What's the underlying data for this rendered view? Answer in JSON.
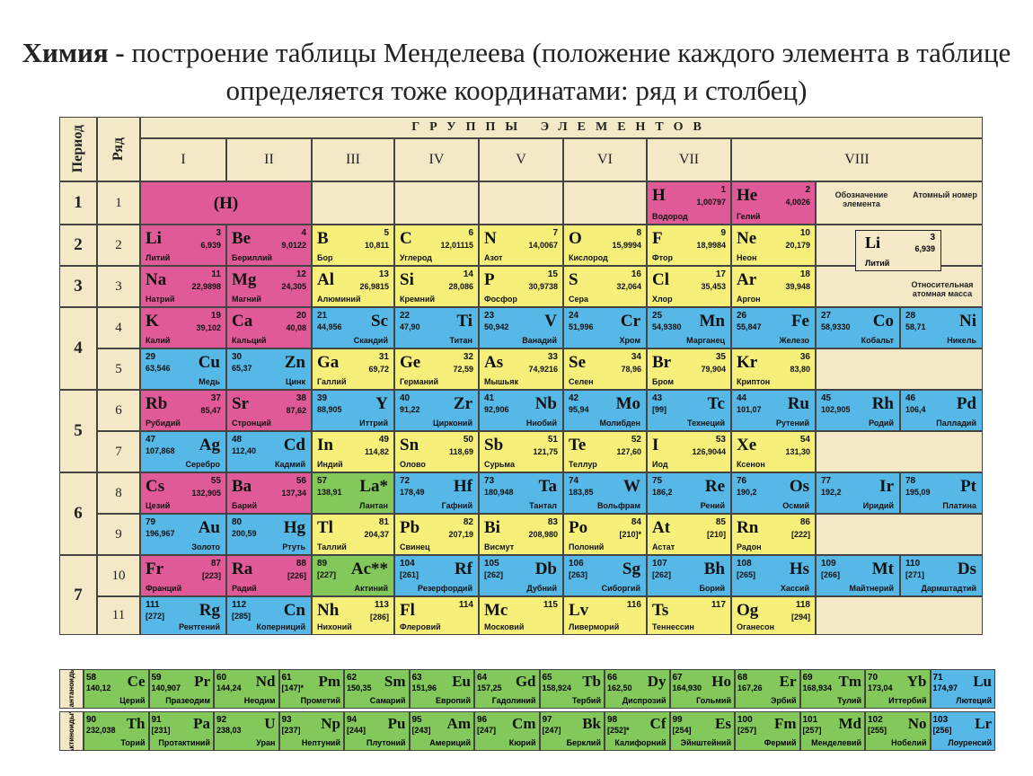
{
  "title": {
    "bold": "Химия -",
    "rest": " построение таблицы Менделеева (положение каждого элемента в таблице определяется тоже координатами: ряд и столбец)"
  },
  "headers": {
    "period": "Период",
    "row": "Ряд",
    "groups_title": "ГРУППЫ ЭЛЕМЕНТОВ",
    "groups": [
      "I",
      "II",
      "III",
      "IV",
      "V",
      "VI",
      "VII",
      "VIII"
    ]
  },
  "periods": [
    "1",
    "2",
    "3",
    "4",
    "5",
    "6",
    "7"
  ],
  "rows": [
    "1",
    "2",
    "3",
    "4",
    "5",
    "6",
    "7",
    "8",
    "9",
    "10",
    "11"
  ],
  "legend": {
    "symbol_label": "Обозначение элемента",
    "number_label": "Атомный номер",
    "mass_label": "Относительная атомная масса",
    "symbol": "Li",
    "number": "3",
    "mass": "6,939",
    "name": "Литий"
  },
  "elements": [
    {
      "r": 0,
      "c": 0,
      "sym": "(H)",
      "num": "",
      "mass": "",
      "name": "",
      "color": "pink",
      "style": "center"
    },
    {
      "r": 0,
      "c": 6,
      "sym": "H",
      "num": "1",
      "mass": "1,00797",
      "name": "Водород",
      "color": "pink",
      "style": "left"
    },
    {
      "r": 0,
      "c": 7,
      "sym": "He",
      "num": "2",
      "mass": "4,0026",
      "name": "Гелий",
      "color": "pink",
      "style": "left"
    },
    {
      "r": 1,
      "c": 0,
      "sym": "Li",
      "num": "3",
      "mass": "6,939",
      "name": "Литий",
      "color": "pink",
      "style": "left"
    },
    {
      "r": 1,
      "c": 1,
      "sym": "Be",
      "num": "4",
      "mass": "9,0122",
      "name": "Бериллий",
      "color": "pink",
      "style": "left"
    },
    {
      "r": 1,
      "c": 2,
      "sym": "B",
      "num": "5",
      "mass": "10,811",
      "name": "Бор",
      "color": "yellow",
      "style": "left"
    },
    {
      "r": 1,
      "c": 3,
      "sym": "C",
      "num": "6",
      "mass": "12,01115",
      "name": "Углерод",
      "color": "yellow",
      "style": "left"
    },
    {
      "r": 1,
      "c": 4,
      "sym": "N",
      "num": "7",
      "mass": "14,0067",
      "name": "Азот",
      "color": "yellow",
      "style": "left"
    },
    {
      "r": 1,
      "c": 5,
      "sym": "O",
      "num": "8",
      "mass": "15,9994",
      "name": "Кислород",
      "color": "yellow",
      "style": "left"
    },
    {
      "r": 1,
      "c": 6,
      "sym": "F",
      "num": "9",
      "mass": "18,9984",
      "name": "Фтор",
      "color": "yellow",
      "style": "left"
    },
    {
      "r": 1,
      "c": 7,
      "sym": "Ne",
      "num": "10",
      "mass": "20,179",
      "name": "Неон",
      "color": "yellow",
      "style": "left"
    },
    {
      "r": 2,
      "c": 0,
      "sym": "Na",
      "num": "11",
      "mass": "22,9898",
      "name": "Натрий",
      "color": "pink",
      "style": "left"
    },
    {
      "r": 2,
      "c": 1,
      "sym": "Mg",
      "num": "12",
      "mass": "24,305",
      "name": "Магний",
      "color": "pink",
      "style": "left"
    },
    {
      "r": 2,
      "c": 2,
      "sym": "Al",
      "num": "13",
      "mass": "26,9815",
      "name": "Алюминий",
      "color": "yellow",
      "style": "left"
    },
    {
      "r": 2,
      "c": 3,
      "sym": "Si",
      "num": "14",
      "mass": "28,086",
      "name": "Кремний",
      "color": "yellow",
      "style": "left"
    },
    {
      "r": 2,
      "c": 4,
      "sym": "P",
      "num": "15",
      "mass": "30,9738",
      "name": "Фосфор",
      "color": "yellow",
      "style": "left"
    },
    {
      "r": 2,
      "c": 5,
      "sym": "S",
      "num": "16",
      "mass": "32,064",
      "name": "Сера",
      "color": "yellow",
      "style": "left"
    },
    {
      "r": 2,
      "c": 6,
      "sym": "Cl",
      "num": "17",
      "mass": "35,453",
      "name": "Хлор",
      "color": "yellow",
      "style": "left"
    },
    {
      "r": 2,
      "c": 7,
      "sym": "Ar",
      "num": "18",
      "mass": "39,948",
      "name": "Аргон",
      "color": "yellow",
      "style": "left"
    },
    {
      "r": 3,
      "c": 0,
      "sym": "K",
      "num": "19",
      "mass": "39,102",
      "name": "Калий",
      "color": "pink",
      "style": "left"
    },
    {
      "r": 3,
      "c": 1,
      "sym": "Ca",
      "num": "20",
      "mass": "40,08",
      "name": "Кальций",
      "color": "pink",
      "style": "left"
    },
    {
      "r": 3,
      "c": 2,
      "sym": "Sc",
      "num": "21",
      "mass": "44,956",
      "name": "Скандий",
      "color": "blue",
      "style": "right"
    },
    {
      "r": 3,
      "c": 3,
      "sym": "Ti",
      "num": "22",
      "mass": "47,90",
      "name": "Титан",
      "color": "blue",
      "style": "right"
    },
    {
      "r": 3,
      "c": 4,
      "sym": "V",
      "num": "23",
      "mass": "50,942",
      "name": "Ванадий",
      "color": "blue",
      "style": "right"
    },
    {
      "r": 3,
      "c": 5,
      "sym": "Cr",
      "num": "24",
      "mass": "51,996",
      "name": "Хром",
      "color": "blue",
      "style": "right"
    },
    {
      "r": 3,
      "c": 6,
      "sym": "Mn",
      "num": "25",
      "mass": "54,9380",
      "name": "Марганец",
      "color": "blue",
      "style": "right"
    },
    {
      "r": 3,
      "c": 7,
      "sym": "Fe",
      "num": "26",
      "mass": "55,847",
      "name": "Железо",
      "color": "blue",
      "style": "right"
    },
    {
      "r": 3,
      "c": 8,
      "sym": "Co",
      "num": "27",
      "mass": "58,9330",
      "name": "Кобальт",
      "color": "blue",
      "style": "right"
    },
    {
      "r": 3,
      "c": 9,
      "sym": "Ni",
      "num": "28",
      "mass": "58,71",
      "name": "Никель",
      "color": "blue",
      "style": "right"
    },
    {
      "r": 4,
      "c": 0,
      "sym": "Cu",
      "num": "29",
      "mass": "63,546",
      "name": "Медь",
      "color": "blue",
      "style": "right"
    },
    {
      "r": 4,
      "c": 1,
      "sym": "Zn",
      "num": "30",
      "mass": "65,37",
      "name": "Цинк",
      "color": "blue",
      "style": "right"
    },
    {
      "r": 4,
      "c": 2,
      "sym": "Ga",
      "num": "31",
      "mass": "69,72",
      "name": "Галлий",
      "color": "yellow",
      "style": "left"
    },
    {
      "r": 4,
      "c": 3,
      "sym": "Ge",
      "num": "32",
      "mass": "72,59",
      "name": "Германий",
      "color": "yellow",
      "style": "left"
    },
    {
      "r": 4,
      "c": 4,
      "sym": "As",
      "num": "33",
      "mass": "74,9216",
      "name": "Мышьяк",
      "color": "yellow",
      "style": "left"
    },
    {
      "r": 4,
      "c": 5,
      "sym": "Se",
      "num": "34",
      "mass": "78,96",
      "name": "Селен",
      "color": "yellow",
      "style": "left"
    },
    {
      "r": 4,
      "c": 6,
      "sym": "Br",
      "num": "35",
      "mass": "79,904",
      "name": "Бром",
      "color": "yellow",
      "style": "left"
    },
    {
      "r": 4,
      "c": 7,
      "sym": "Kr",
      "num": "36",
      "mass": "83,80",
      "name": "Криптон",
      "color": "yellow",
      "style": "left"
    },
    {
      "r": 5,
      "c": 0,
      "sym": "Rb",
      "num": "37",
      "mass": "85,47",
      "name": "Рубидий",
      "color": "pink",
      "style": "left"
    },
    {
      "r": 5,
      "c": 1,
      "sym": "Sr",
      "num": "38",
      "mass": "87,62",
      "name": "Стронций",
      "color": "pink",
      "style": "left"
    },
    {
      "r": 5,
      "c": 2,
      "sym": "Y",
      "num": "39",
      "mass": "88,905",
      "name": "Иттрий",
      "color": "blue",
      "style": "right"
    },
    {
      "r": 5,
      "c": 3,
      "sym": "Zr",
      "num": "40",
      "mass": "91,22",
      "name": "Цирконий",
      "color": "blue",
      "style": "right"
    },
    {
      "r": 5,
      "c": 4,
      "sym": "Nb",
      "num": "41",
      "mass": "92,906",
      "name": "Ниобий",
      "color": "blue",
      "style": "right"
    },
    {
      "r": 5,
      "c": 5,
      "sym": "Mo",
      "num": "42",
      "mass": "95,94",
      "name": "Молибден",
      "color": "blue",
      "style": "right"
    },
    {
      "r": 5,
      "c": 6,
      "sym": "Tc",
      "num": "43",
      "mass": "[99]",
      "name": "Технеций",
      "color": "blue",
      "style": "right"
    },
    {
      "r": 5,
      "c": 7,
      "sym": "Ru",
      "num": "44",
      "mass": "101,07",
      "name": "Рутений",
      "color": "blue",
      "style": "right"
    },
    {
      "r": 5,
      "c": 8,
      "sym": "Rh",
      "num": "45",
      "mass": "102,905",
      "name": "Родий",
      "color": "blue",
      "style": "right"
    },
    {
      "r": 5,
      "c": 9,
      "sym": "Pd",
      "num": "46",
      "mass": "106,4",
      "name": "Палладий",
      "color": "blue",
      "style": "right"
    },
    {
      "r": 6,
      "c": 0,
      "sym": "Ag",
      "num": "47",
      "mass": "107,868",
      "name": "Серебро",
      "color": "blue",
      "style": "right"
    },
    {
      "r": 6,
      "c": 1,
      "sym": "Cd",
      "num": "48",
      "mass": "112,40",
      "name": "Кадмий",
      "color": "blue",
      "style": "right"
    },
    {
      "r": 6,
      "c": 2,
      "sym": "In",
      "num": "49",
      "mass": "114,82",
      "name": "Индий",
      "color": "yellow",
      "style": "left"
    },
    {
      "r": 6,
      "c": 3,
      "sym": "Sn",
      "num": "50",
      "mass": "118,69",
      "name": "Олово",
      "color": "yellow",
      "style": "left"
    },
    {
      "r": 6,
      "c": 4,
      "sym": "Sb",
      "num": "51",
      "mass": "121,75",
      "name": "Сурьма",
      "color": "yellow",
      "style": "left"
    },
    {
      "r": 6,
      "c": 5,
      "sym": "Te",
      "num": "52",
      "mass": "127,60",
      "name": "Теллур",
      "color": "yellow",
      "style": "left"
    },
    {
      "r": 6,
      "c": 6,
      "sym": "I",
      "num": "53",
      "mass": "126,9044",
      "name": "Иод",
      "color": "yellow",
      "style": "left"
    },
    {
      "r": 6,
      "c": 7,
      "sym": "Xe",
      "num": "54",
      "mass": "131,30",
      "name": "Ксенон",
      "color": "yellow",
      "style": "left"
    },
    {
      "r": 7,
      "c": 0,
      "sym": "Cs",
      "num": "55",
      "mass": "132,905",
      "name": "Цезий",
      "color": "pink",
      "style": "left"
    },
    {
      "r": 7,
      "c": 1,
      "sym": "Ba",
      "num": "56",
      "mass": "137,34",
      "name": "Барий",
      "color": "pink",
      "style": "left"
    },
    {
      "r": 7,
      "c": 2,
      "sym": "La*",
      "num": "57",
      "mass": "138,91",
      "name": "Лантан",
      "color": "green",
      "style": "right"
    },
    {
      "r": 7,
      "c": 3,
      "sym": "Hf",
      "num": "72",
      "mass": "178,49",
      "name": "Гафний",
      "color": "blue",
      "style": "right"
    },
    {
      "r": 7,
      "c": 4,
      "sym": "Ta",
      "num": "73",
      "mass": "180,948",
      "name": "Тантал",
      "color": "blue",
      "style": "right"
    },
    {
      "r": 7,
      "c": 5,
      "sym": "W",
      "num": "74",
      "mass": "183,85",
      "name": "Вольфрам",
      "color": "blue",
      "style": "right"
    },
    {
      "r": 7,
      "c": 6,
      "sym": "Re",
      "num": "75",
      "mass": "186,2",
      "name": "Рений",
      "color": "blue",
      "style": "right"
    },
    {
      "r": 7,
      "c": 7,
      "sym": "Os",
      "num": "76",
      "mass": "190,2",
      "name": "Осмий",
      "color": "blue",
      "style": "right"
    },
    {
      "r": 7,
      "c": 8,
      "sym": "Ir",
      "num": "77",
      "mass": "192,2",
      "name": "Иридий",
      "color": "blue",
      "style": "right"
    },
    {
      "r": 7,
      "c": 9,
      "sym": "Pt",
      "num": "78",
      "mass": "195,09",
      "name": "Платина",
      "color": "blue",
      "style": "right"
    },
    {
      "r": 8,
      "c": 0,
      "sym": "Au",
      "num": "79",
      "mass": "196,967",
      "name": "Золото",
      "color": "blue",
      "style": "right"
    },
    {
      "r": 8,
      "c": 1,
      "sym": "Hg",
      "num": "80",
      "mass": "200,59",
      "name": "Ртуть",
      "color": "blue",
      "style": "right"
    },
    {
      "r": 8,
      "c": 2,
      "sym": "Tl",
      "num": "81",
      "mass": "204,37",
      "name": "Таллий",
      "color": "yellow",
      "style": "left"
    },
    {
      "r": 8,
      "c": 3,
      "sym": "Pb",
      "num": "82",
      "mass": "207,19",
      "name": "Свинец",
      "color": "yellow",
      "style": "left"
    },
    {
      "r": 8,
      "c": 4,
      "sym": "Bi",
      "num": "83",
      "mass": "208,980",
      "name": "Висмут",
      "color": "yellow",
      "style": "left"
    },
    {
      "r": 8,
      "c": 5,
      "sym": "Po",
      "num": "84",
      "mass": "[210]*",
      "name": "Полоний",
      "color": "yellow",
      "style": "left"
    },
    {
      "r": 8,
      "c": 6,
      "sym": "At",
      "num": "85",
      "mass": "[210]",
      "name": "Астат",
      "color": "yellow",
      "style": "left"
    },
    {
      "r": 8,
      "c": 7,
      "sym": "Rn",
      "num": "86",
      "mass": "[222]",
      "name": "Радон",
      "color": "yellow",
      "style": "left"
    },
    {
      "r": 9,
      "c": 0,
      "sym": "Fr",
      "num": "87",
      "mass": "[223]",
      "name": "Франций",
      "color": "pink",
      "style": "left"
    },
    {
      "r": 9,
      "c": 1,
      "sym": "Ra",
      "num": "88",
      "mass": "[226]",
      "name": "Радий",
      "color": "pink",
      "style": "left"
    },
    {
      "r": 9,
      "c": 2,
      "sym": "Ac**",
      "num": "89",
      "mass": "[227]",
      "name": "Актиний",
      "color": "green",
      "style": "right"
    },
    {
      "r": 9,
      "c": 3,
      "sym": "Rf",
      "num": "104",
      "mass": "[261]",
      "name": "Резерфордий",
      "color": "blue",
      "style": "right"
    },
    {
      "r": 9,
      "c": 4,
      "sym": "Db",
      "num": "105",
      "mass": "[262]",
      "name": "Дубний",
      "color": "blue",
      "style": "right"
    },
    {
      "r": 9,
      "c": 5,
      "sym": "Sg",
      "num": "106",
      "mass": "[263]",
      "name": "Сиборгий",
      "color": "blue",
      "style": "right"
    },
    {
      "r": 9,
      "c": 6,
      "sym": "Bh",
      "num": "107",
      "mass": "[262]",
      "name": "Борий",
      "color": "blue",
      "style": "right"
    },
    {
      "r": 9,
      "c": 7,
      "sym": "Hs",
      "num": "108",
      "mass": "[265]",
      "name": "Хассий",
      "color": "blue",
      "style": "right"
    },
    {
      "r": 9,
      "c": 8,
      "sym": "Mt",
      "num": "109",
      "mass": "[266]",
      "name": "Майтнерий",
      "color": "blue",
      "style": "right"
    },
    {
      "r": 9,
      "c": 9,
      "sym": "Ds",
      "num": "110",
      "mass": "[271]",
      "name": "Дармштадтий",
      "color": "blue",
      "style": "right"
    },
    {
      "r": 10,
      "c": 0,
      "sym": "Rg",
      "num": "111",
      "mass": "[272]",
      "name": "Рентгений",
      "color": "blue",
      "style": "right"
    },
    {
      "r": 10,
      "c": 1,
      "sym": "Cn",
      "num": "112",
      "mass": "[285]",
      "name": "Коперниций",
      "color": "blue",
      "style": "right"
    },
    {
      "r": 10,
      "c": 2,
      "sym": "Nh",
      "num": "113",
      "mass": "[286]",
      "name": "Нихоний",
      "color": "yellow",
      "style": "left"
    },
    {
      "r": 10,
      "c": 3,
      "sym": "Fl",
      "num": "114",
      "mass": "",
      "name": "Флеровий",
      "color": "yellow",
      "style": "left"
    },
    {
      "r": 10,
      "c": 4,
      "sym": "Mc",
      "num": "115",
      "mass": "",
      "name": "Московий",
      "color": "yellow",
      "style": "left"
    },
    {
      "r": 10,
      "c": 5,
      "sym": "Lv",
      "num": "116",
      "mass": "",
      "name": "Ливерморий",
      "color": "yellow",
      "style": "left"
    },
    {
      "r": 10,
      "c": 6,
      "sym": "Ts",
      "num": "117",
      "mass": "",
      "name": "Теннессин",
      "color": "yellow",
      "style": "left"
    },
    {
      "r": 10,
      "c": 7,
      "sym": "Og",
      "num": "118",
      "mass": "[294]",
      "name": "Оганесон",
      "color": "yellow",
      "style": "left"
    }
  ],
  "lanthanides": {
    "label": "Лантаноиды*",
    "items": [
      {
        "sym": "Ce",
        "num": "58",
        "mass": "140,12",
        "name": "Церий"
      },
      {
        "sym": "Pr",
        "num": "59",
        "mass": "140,907",
        "name": "Празеодим"
      },
      {
        "sym": "Nd",
        "num": "60",
        "mass": "144,24",
        "name": "Неодим"
      },
      {
        "sym": "Pm",
        "num": "61",
        "mass": "[147]*",
        "name": "Прометий"
      },
      {
        "sym": "Sm",
        "num": "62",
        "mass": "150,35",
        "name": "Самарий"
      },
      {
        "sym": "Eu",
        "num": "63",
        "mass": "151,96",
        "name": "Европий"
      },
      {
        "sym": "Gd",
        "num": "64",
        "mass": "157,25",
        "name": "Гадолиний"
      },
      {
        "sym": "Tb",
        "num": "65",
        "mass": "158,924",
        "name": "Тербий"
      },
      {
        "sym": "Dy",
        "num": "66",
        "mass": "162,50",
        "name": "Диспрозий"
      },
      {
        "sym": "Ho",
        "num": "67",
        "mass": "164,930",
        "name": "Гольмий"
      },
      {
        "sym": "Er",
        "num": "68",
        "mass": "167,26",
        "name": "Эрбий"
      },
      {
        "sym": "Tm",
        "num": "69",
        "mass": "168,934",
        "name": "Тулий"
      },
      {
        "sym": "Yb",
        "num": "70",
        "mass": "173,04",
        "name": "Иттербий"
      },
      {
        "sym": "Lu",
        "num": "71",
        "mass": "174,97",
        "name": "Лютеций"
      }
    ]
  },
  "actinides": {
    "label": "Актиноиды**",
    "items": [
      {
        "sym": "Th",
        "num": "90",
        "mass": "232,038",
        "name": "Торий"
      },
      {
        "sym": "Pa",
        "num": "91",
        "mass": "[231]",
        "name": "Протактиний"
      },
      {
        "sym": "U",
        "num": "92",
        "mass": "238,03",
        "name": "Уран"
      },
      {
        "sym": "Np",
        "num": "93",
        "mass": "[237]",
        "name": "Нептуний"
      },
      {
        "sym": "Pu",
        "num": "94",
        "mass": "[244]",
        "name": "Плутоний"
      },
      {
        "sym": "Am",
        "num": "95",
        "mass": "[243]",
        "name": "Америций"
      },
      {
        "sym": "Cm",
        "num": "96",
        "mass": "[247]",
        "name": "Кюрий"
      },
      {
        "sym": "Bk",
        "num": "97",
        "mass": "[247]",
        "name": "Берклий"
      },
      {
        "sym": "Cf",
        "num": "98",
        "mass": "[252]*",
        "name": "Калифорний"
      },
      {
        "sym": "Es",
        "num": "99",
        "mass": "[254]",
        "name": "Эйнштейний"
      },
      {
        "sym": "Fm",
        "num": "100",
        "mass": "[257]",
        "name": "Фермий"
      },
      {
        "sym": "Md",
        "num": "101",
        "mass": "[257]",
        "name": "Менделевий"
      },
      {
        "sym": "No",
        "num": "102",
        "mass": "[255]",
        "name": "Нобелий"
      },
      {
        "sym": "Lr",
        "num": "103",
        "mass": "[256]",
        "name": "Лоуренсий"
      }
    ]
  },
  "colors": {
    "pink": "#e05a97",
    "yellow": "#f6f07a",
    "blue": "#56b8e6",
    "green": "#83c85b",
    "cream": "#f4e9c7"
  }
}
